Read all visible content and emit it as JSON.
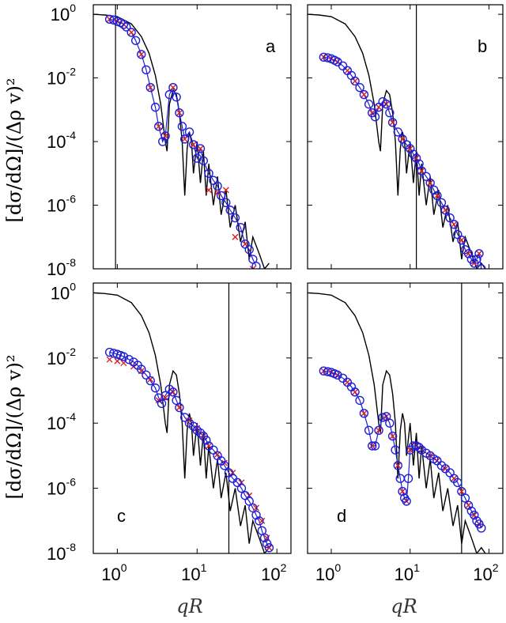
{
  "figure": {
    "ylabel": "[dσ/dΩ]/(Δρ v)²",
    "xlabel": "qR"
  },
  "colors": {
    "model": "#000000",
    "circles": "#1f1fd6",
    "crosses": "#e01f1f",
    "frame": "#000000"
  },
  "chart_data": [
    {
      "panel": "a",
      "type": "line",
      "xscale": "log",
      "yscale": "log",
      "xlim": [
        0.5,
        150
      ],
      "ylim": [
        1e-08,
        2
      ],
      "x_ticks": [
        "10^0",
        "10^1",
        "10^2"
      ],
      "y_ticks": [
        "10^-8",
        "10^-6",
        "10^-4",
        "10^-2",
        "10^0"
      ],
      "vline": 0.95,
      "circles": {
        "x": [
          0.8,
          0.9,
          1.0,
          1.1,
          1.2,
          1.3,
          1.5,
          1.7,
          2.0,
          2.3,
          2.6,
          3.0,
          3.3,
          3.7,
          4.0,
          4.5,
          5.0,
          5.5,
          6.0,
          6.5,
          7.0,
          8.0,
          9.0,
          10.0,
          11.0,
          12.0,
          14.0,
          16.0,
          18.0,
          20.0,
          23.0,
          26.0,
          30.0,
          35.0,
          40.0,
          45.0,
          50.0,
          55.0
        ],
        "y": [
          0.7,
          0.66,
          0.6,
          0.55,
          0.48,
          0.4,
          0.27,
          0.15,
          0.055,
          0.018,
          0.005,
          0.0012,
          0.0003,
          0.0001,
          0.00015,
          0.003,
          0.005,
          0.0025,
          0.0008,
          0.0003,
          0.00012,
          0.0002,
          8e-05,
          3e-05,
          6e-05,
          2.5e-05,
          1e-05,
          6e-06,
          4e-06,
          2e-06,
          1.2e-06,
          7e-07,
          4e-07,
          2e-07,
          6e-08,
          4e-08,
          2e-08,
          1.2e-08
        ]
      },
      "crosses": {
        "x": [
          0.8,
          1.0,
          1.2,
          1.5,
          2.0,
          2.6,
          3.3,
          4.0,
          5.0,
          6.0,
          7.0,
          9.0,
          11.0,
          14.0,
          18.0,
          23.0,
          30.0,
          40.0,
          50.0
        ],
        "y": [
          0.7,
          0.6,
          0.48,
          0.27,
          0.055,
          0.005,
          0.0003,
          0.00015,
          0.005,
          0.0008,
          0.00012,
          8e-05,
          6e-05,
          3e-06,
          2.5e-06,
          3e-06,
          1e-07,
          6e-08,
          1e-08
        ]
      },
      "model_x": [
        0.5,
        0.7,
        1.0,
        1.5,
        2.0,
        2.5,
        3.0,
        3.5,
        4.0,
        4.2,
        4.5,
        5.0,
        5.5,
        6.0,
        6.5,
        7.0,
        7.5,
        8.0,
        8.5,
        9.0,
        10.0,
        11.0,
        12.0,
        13.0,
        14.0,
        16.0,
        18.0,
        20.0,
        23.0,
        26.0,
        30.0,
        35.0,
        40.0,
        45.0,
        50.0,
        60.0,
        70.0,
        80.0
      ],
      "model_y": [
        1.0,
        0.95,
        0.85,
        0.5,
        0.2,
        0.06,
        0.012,
        0.0015,
        0.0001,
        5e-05,
        0.0015,
        0.004,
        0.003,
        0.0008,
        0.0001,
        2e-06,
        6e-05,
        0.0002,
        0.0001,
        1e-05,
        0.0001,
        5e-06,
        5e-05,
        2e-06,
        2e-05,
        1e-06,
        8e-06,
        5e-07,
        3e-06,
        2e-07,
        1e-06,
        7e-08,
        3e-07,
        2e-08,
        1e-07,
        3e-08,
        1e-08,
        1.5e-08
      ],
      "label": "a"
    },
    {
      "panel": "b",
      "type": "line",
      "xscale": "log",
      "yscale": "log",
      "xlim": [
        0.5,
        150
      ],
      "ylim": [
        1e-08,
        2
      ],
      "x_ticks": [
        "10^0",
        "10^1",
        "10^2"
      ],
      "y_ticks": [
        "10^-8",
        "10^-6",
        "10^-4",
        "10^-2",
        "10^0"
      ],
      "vline": 12,
      "circles": {
        "x": [
          0.8,
          0.9,
          1.0,
          1.1,
          1.2,
          1.4,
          1.6,
          1.8,
          2.0,
          2.3,
          2.6,
          3.0,
          3.3,
          3.6,
          4.0,
          4.5,
          5.0,
          5.5,
          6.0,
          7.0,
          8.0,
          9.0,
          10.0,
          11.0,
          12.0,
          13.0,
          14.0,
          16.0,
          18.0,
          20.0,
          22.0,
          25.0,
          28.0,
          32.0,
          36.0,
          40.0,
          45.0,
          50.0,
          55.0,
          60.0,
          65.0,
          70.0,
          75.0,
          80.0
        ],
        "y": [
          0.045,
          0.043,
          0.04,
          0.036,
          0.032,
          0.024,
          0.017,
          0.012,
          0.008,
          0.005,
          0.003,
          0.0015,
          0.0008,
          0.0006,
          0.0012,
          0.0018,
          0.0015,
          0.0008,
          0.0004,
          0.0002,
          0.00012,
          8e-05,
          6e-05,
          4e-05,
          3e-05,
          2e-05,
          1.2e-05,
          8e-06,
          5e-06,
          3e-06,
          2e-06,
          1.2e-06,
          7e-07,
          4e-07,
          2.5e-07,
          1.2e-07,
          8e-08,
          4e-08,
          3e-08,
          2e-08,
          1.5e-08,
          2e-08,
          3e-08,
          1e-08
        ],
        "note": ""
      },
      "crosses": {
        "x": [
          0.8,
          1.0,
          1.2,
          1.6,
          2.0,
          2.6,
          3.3,
          4.0,
          5.0,
          6.0,
          8.0,
          10.0,
          12.0,
          14.0,
          18.0,
          22.0,
          28.0,
          36.0,
          45.0,
          55.0,
          65.0,
          75.0
        ],
        "y": [
          0.045,
          0.04,
          0.032,
          0.017,
          0.008,
          0.003,
          0.0008,
          0.0012,
          0.0015,
          0.0004,
          0.00012,
          6e-05,
          3e-05,
          1.2e-05,
          5e-06,
          2e-06,
          7e-07,
          2.5e-07,
          8e-08,
          3e-08,
          1.5e-08,
          3e-08
        ]
      },
      "model_x": [
        0.5,
        0.7,
        1.0,
        1.5,
        2.0,
        2.5,
        3.0,
        3.5,
        4.0,
        4.2,
        4.5,
        5.0,
        5.5,
        6.0,
        6.5,
        7.0,
        7.5,
        8.0,
        8.5,
        9.0,
        10.0,
        11.0,
        12.0,
        13.0,
        14.0,
        16.0,
        18.0,
        20.0,
        23.0,
        26.0,
        30.0,
        35.0,
        40.0,
        45.0,
        50.0,
        60.0,
        70.0,
        80.0,
        90.0
      ],
      "model_y": [
        1.0,
        0.95,
        0.85,
        0.5,
        0.2,
        0.06,
        0.012,
        0.0015,
        0.0001,
        5e-05,
        0.0015,
        0.004,
        0.003,
        0.0008,
        0.0001,
        2e-06,
        6e-05,
        0.0002,
        0.0001,
        1e-05,
        0.0001,
        5e-06,
        5e-05,
        2e-06,
        2e-05,
        1e-06,
        8e-06,
        5e-07,
        3e-06,
        2e-07,
        1e-06,
        7e-08,
        3e-07,
        2e-08,
        1e-07,
        3e-08,
        1e-08,
        1.5e-08,
        1e-08
      ],
      "label": "b"
    },
    {
      "panel": "c",
      "type": "line",
      "xscale": "log",
      "yscale": "log",
      "xlim": [
        0.5,
        150
      ],
      "ylim": [
        1e-08,
        2
      ],
      "x_ticks": [
        "10^0",
        "10^1",
        "10^2"
      ],
      "y_ticks": [
        "10^-8",
        "10^-6",
        "10^-4",
        "10^-2",
        "10^0"
      ],
      "vline": 25,
      "circles": {
        "x": [
          0.8,
          0.9,
          1.0,
          1.1,
          1.2,
          1.4,
          1.6,
          1.8,
          2.0,
          2.3,
          2.6,
          3.0,
          3.3,
          3.6,
          4.0,
          4.5,
          5.0,
          5.5,
          6.0,
          7.0,
          8.0,
          9.0,
          10.0,
          11.0,
          12.0,
          13.0,
          14.0,
          16.0,
          18.0,
          20.0,
          22.0,
          25.0,
          28.0,
          32.0,
          36.0,
          40.0,
          45.0,
          50.0,
          55.0,
          60.0,
          65.0,
          70.0,
          75.0,
          80.0
        ],
        "y": [
          0.015,
          0.014,
          0.013,
          0.012,
          0.011,
          0.009,
          0.0075,
          0.006,
          0.0045,
          0.003,
          0.002,
          0.0012,
          0.0006,
          0.0004,
          0.0007,
          0.0011,
          0.0009,
          0.0005,
          0.0003,
          0.00015,
          0.0001,
          8e-05,
          6e-05,
          5e-05,
          4e-05,
          3e-05,
          2e-05,
          1.5e-05,
          1e-05,
          7e-06,
          5e-06,
          3e-06,
          2e-06,
          1.5e-06,
          1e-06,
          6e-07,
          4e-07,
          2.5e-07,
          1.5e-07,
          1e-07,
          5e-08,
          3e-08,
          2e-08,
          1.5e-08
        ]
      },
      "crosses": {
        "x": [
          0.8,
          1.0,
          1.2,
          1.6,
          2.0,
          2.6,
          3.3,
          4.0,
          5.0,
          6.0,
          8.0,
          10.0,
          12.0,
          14.0,
          18.0,
          22.0,
          28.0,
          36.0,
          45.0,
          55.0,
          65.0,
          75.0,
          80.0
        ],
        "y": [
          0.009,
          0.008,
          0.007,
          0.0055,
          0.004,
          0.0022,
          0.0005,
          0.0006,
          0.0009,
          0.0003,
          0.00012,
          7e-05,
          4e-05,
          2e-05,
          1.1e-05,
          6e-06,
          3e-06,
          1.5e-06,
          6e-07,
          2.5e-07,
          1e-07,
          3e-08,
          1.5e-08
        ]
      },
      "model_x": [
        0.5,
        0.7,
        1.0,
        1.5,
        2.0,
        2.5,
        3.0,
        3.5,
        4.0,
        4.2,
        4.5,
        5.0,
        5.5,
        6.0,
        6.5,
        7.0,
        7.5,
        8.0,
        8.5,
        9.0,
        10.0,
        11.0,
        12.0,
        13.0,
        14.0,
        16.0,
        18.0,
        20.0,
        23.0,
        26.0,
        30.0,
        35.0,
        40.0,
        45.0,
        50.0,
        60.0,
        70.0,
        80.0
      ],
      "model_y": [
        1.0,
        0.95,
        0.85,
        0.5,
        0.2,
        0.06,
        0.012,
        0.0015,
        0.0001,
        5e-05,
        0.0015,
        0.004,
        0.003,
        0.0008,
        0.0001,
        2e-06,
        6e-05,
        0.0002,
        0.0001,
        1e-05,
        0.0001,
        5e-06,
        5e-05,
        2e-06,
        2e-05,
        1e-06,
        8e-06,
        5e-07,
        3e-06,
        2e-07,
        1e-06,
        7e-08,
        3e-07,
        2e-08,
        1e-07,
        3e-08,
        1e-08,
        1.5e-08
      ],
      "label": "c"
    },
    {
      "panel": "d",
      "type": "line",
      "xscale": "log",
      "yscale": "log",
      "xlim": [
        0.5,
        150
      ],
      "ylim": [
        1e-08,
        2
      ],
      "x_ticks": [
        "10^0",
        "10^1",
        "10^2"
      ],
      "y_ticks": [
        "10^-8",
        "10^-6",
        "10^-4",
        "10^-2",
        "10^0"
      ],
      "vline": 45,
      "circles": {
        "x": [
          0.8,
          0.9,
          1.0,
          1.1,
          1.2,
          1.4,
          1.6,
          1.8,
          2.0,
          2.3,
          2.6,
          3.0,
          3.3,
          3.6,
          4.0,
          4.5,
          5.0,
          5.5,
          6.0,
          6.5,
          7.0,
          7.5,
          8.0,
          8.5,
          9.0,
          9.5,
          10.0,
          11.0,
          12.0,
          13.0,
          14.0,
          16.0,
          18.0,
          20.0,
          22.0,
          25.0,
          28.0,
          32.0,
          36.0,
          40.0,
          45.0,
          50.0,
          55.0,
          60.0,
          65.0,
          70.0,
          75.0,
          80.0
        ],
        "y": [
          0.004,
          0.0038,
          0.0036,
          0.0033,
          0.003,
          0.0024,
          0.0018,
          0.0013,
          0.0009,
          0.0005,
          0.0002,
          6e-05,
          2e-05,
          2e-05,
          6e-05,
          0.00015,
          0.00016,
          0.0001,
          4e-05,
          1.5e-05,
          5e-06,
          2e-06,
          8e-07,
          5e-07,
          4e-07,
          2e-06,
          1.5e-05,
          2e-05,
          2e-05,
          1.8e-05,
          1.5e-05,
          1.2e-05,
          1e-05,
          8e-06,
          7e-06,
          5e-06,
          4e-06,
          3e-06,
          2e-06,
          1.5e-06,
          8e-07,
          5e-07,
          3e-07,
          2e-07,
          1.5e-07,
          1e-07,
          8e-08,
          6e-08
        ]
      },
      "crosses": {
        "x": [
          0.8,
          1.0,
          1.2,
          1.6,
          2.0,
          2.6,
          3.3,
          4.0,
          5.0,
          6.0,
          7.0,
          8.0,
          9.0,
          10.0,
          12.0,
          14.0,
          18.0,
          22.0,
          28.0,
          36.0,
          45.0,
          55.0,
          65.0,
          75.0
        ],
        "y": [
          0.004,
          0.0036,
          0.003,
          0.0018,
          0.0009,
          0.0002,
          2e-05,
          6e-05,
          0.00016,
          4e-05,
          5e-06,
          8e-07,
          4e-07,
          1.5e-05,
          2e-05,
          1.5e-05,
          1e-05,
          7e-06,
          4e-06,
          2e-06,
          8e-07,
          3e-07,
          1.5e-07,
          8e-08
        ]
      },
      "model_x": [
        0.5,
        0.7,
        1.0,
        1.5,
        2.0,
        2.5,
        3.0,
        3.5,
        4.0,
        4.2,
        4.5,
        5.0,
        5.5,
        6.0,
        6.5,
        7.0,
        7.5,
        8.0,
        8.5,
        9.0,
        10.0,
        11.0,
        12.0,
        13.0,
        14.0,
        16.0,
        18.0,
        20.0,
        23.0,
        26.0,
        30.0,
        35.0,
        40.0,
        45.0,
        50.0,
        60.0,
        70.0,
        80.0,
        90.0
      ],
      "model_y": [
        1.0,
        0.95,
        0.85,
        0.5,
        0.2,
        0.06,
        0.012,
        0.0015,
        0.0001,
        5e-05,
        0.0015,
        0.004,
        0.003,
        0.0008,
        0.0001,
        2e-06,
        6e-05,
        0.0002,
        0.0001,
        1e-05,
        0.0001,
        5e-06,
        5e-05,
        2e-06,
        2e-05,
        1e-06,
        8e-06,
        5e-07,
        3e-06,
        2e-07,
        1e-06,
        7e-08,
        3e-07,
        2e-08,
        1e-07,
        3e-08,
        1e-08,
        1.5e-08,
        1e-08
      ],
      "label": "d"
    }
  ]
}
